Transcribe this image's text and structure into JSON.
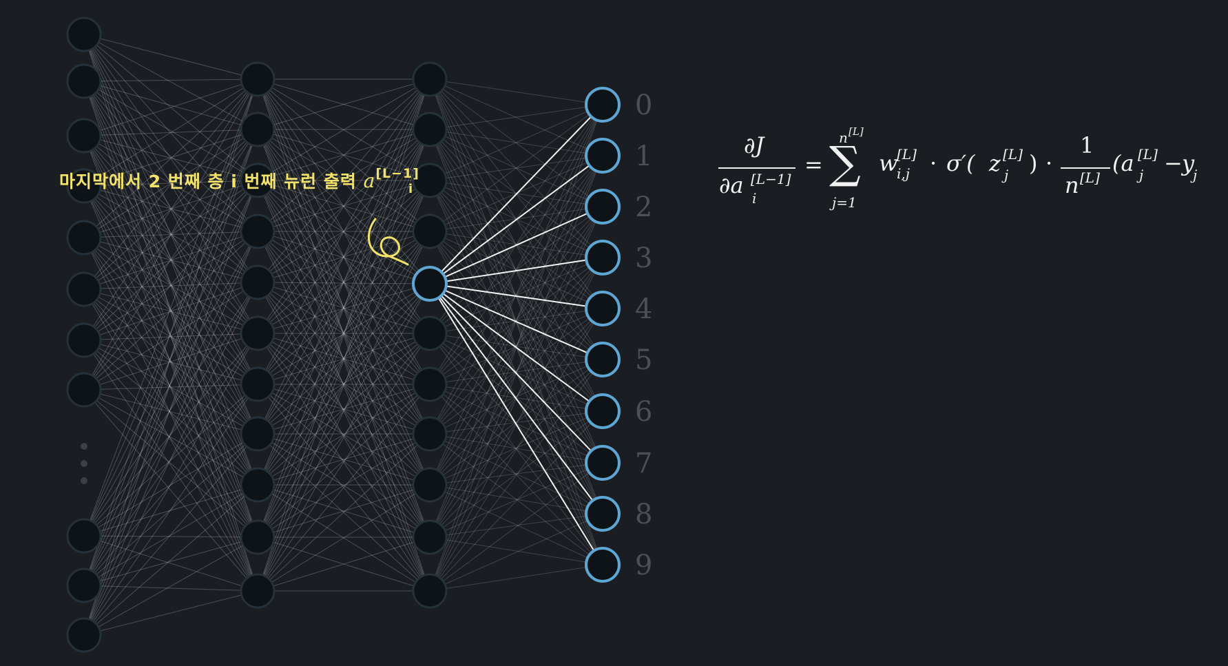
{
  "output_labels": [
    "0",
    "1",
    "2",
    "3",
    "4",
    "5",
    "6",
    "7",
    "8",
    "9"
  ],
  "annotation": {
    "korean_text": "마지막에서 2 번째 층 i 번째 뉴런 출력",
    "var": "a",
    "sub": "i",
    "sup": "[L−1]"
  },
  "formula": {
    "lhs_num": "∂J",
    "lhs_den_base": "∂a",
    "lhs_den_sub": "i",
    "lhs_den_sup": "[L−1]",
    "equals": "=",
    "sum_symbol": "∑",
    "sum_upper": "n",
    "sum_upper_sup": "[L]",
    "sum_lower": "j=1",
    "w_base": "w",
    "w_sub": "i,j",
    "w_sup": "[L]",
    "dot": "·",
    "sigma_prime": "σ′(",
    "z_base": "z",
    "z_sub": "j",
    "z_sup": "[L]",
    "close_paren": ")",
    "frac_num": "1",
    "frac_den_base": "n",
    "frac_den_sup": "[L]",
    "a_open": "(a",
    "a_sub": "j",
    "a_sup": "[L]",
    "minus": "−",
    "y_base": "y",
    "y_sub": "j",
    "y_close": ")"
  },
  "colors": {
    "background": "#1a1d22",
    "faded_neuron": "#0d1317",
    "faded_stroke": "#26313a",
    "highlight_stroke": "#5ea6d3",
    "annotation": "#f3e36b",
    "output_label": "#4d5155"
  }
}
